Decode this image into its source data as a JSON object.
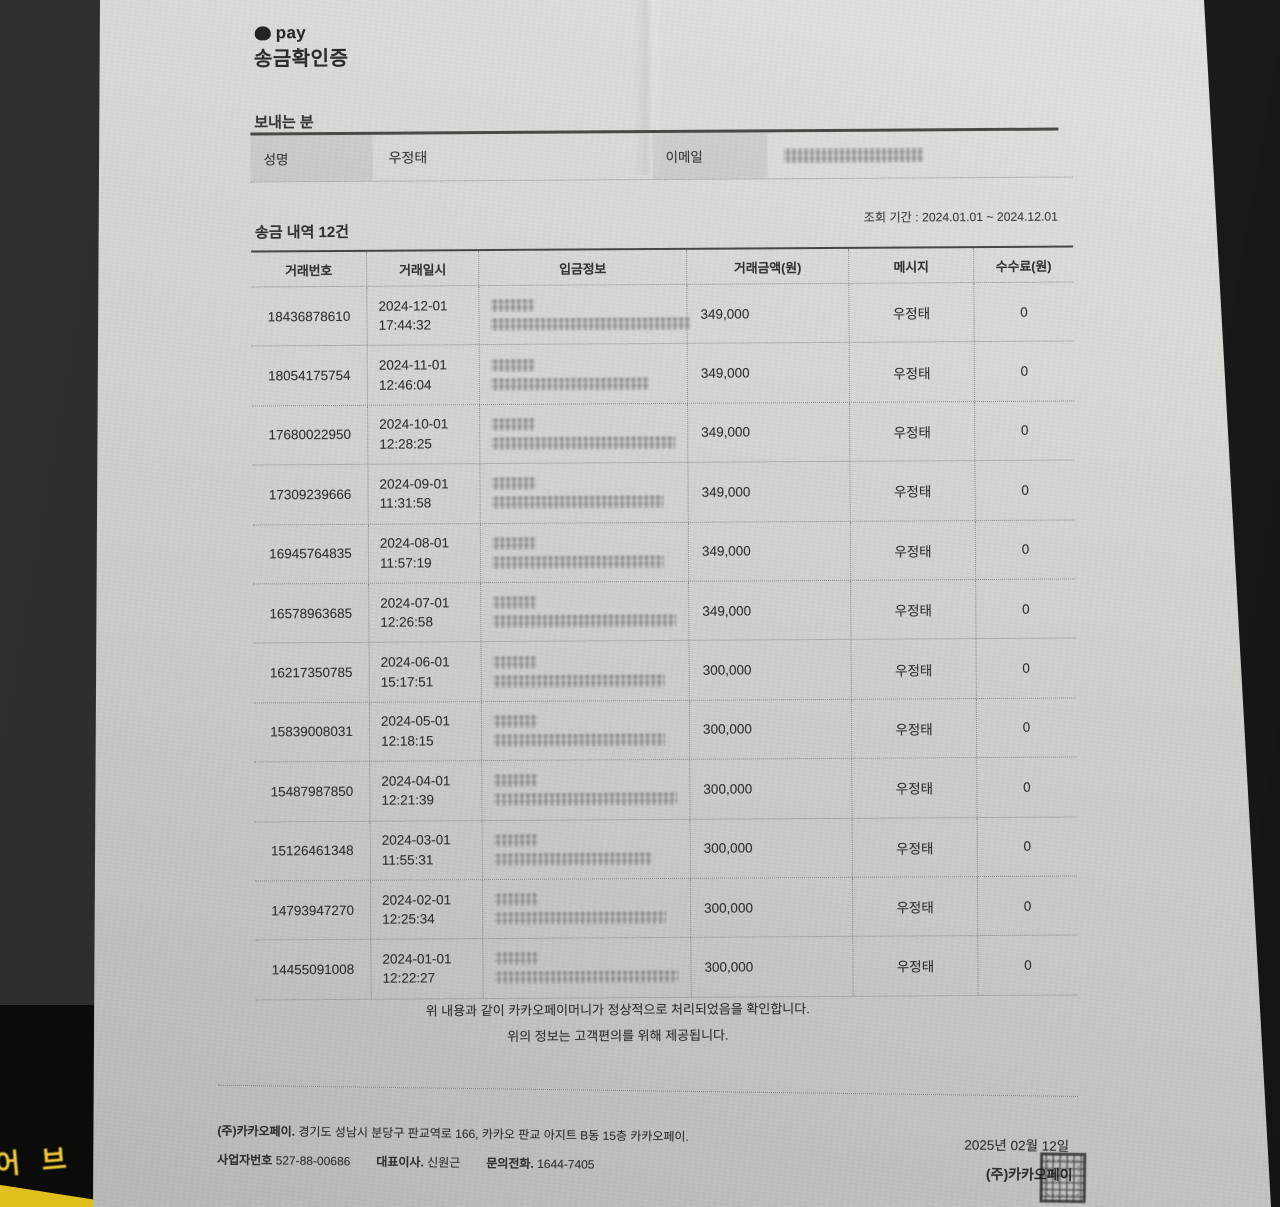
{
  "backdrop": {
    "partial_text": "어 브"
  },
  "logo": {
    "icon": "kakao-speech-bubble-icon",
    "text": "pay"
  },
  "document": {
    "title": "송금확인증",
    "sender": {
      "heading": "보내는 분",
      "name_label": "성명",
      "name": "우정태",
      "email_label": "이메일",
      "email_redacted": "pixelated-blur"
    },
    "history": {
      "heading": "송금 내역 12건",
      "period": "조회 기간 : 2024.01.01 ~ 2024.12.01",
      "columns": [
        "거래번호",
        "거래일시",
        "입금정보",
        "거래금액(원)",
        "메시지",
        "수수료(원)"
      ],
      "deposit_info_redacted": "pixelated-blur",
      "rows": [
        {
          "txn_id": "18436878610",
          "date": "2024-12-01",
          "time": "17:44:32",
          "amount": "349,000",
          "message": "우정태",
          "fee": "0"
        },
        {
          "txn_id": "18054175754",
          "date": "2024-11-01",
          "time": "12:46:04",
          "amount": "349,000",
          "message": "우정태",
          "fee": "0"
        },
        {
          "txn_id": "17680022950",
          "date": "2024-10-01",
          "time": "12:28:25",
          "amount": "349,000",
          "message": "우정태",
          "fee": "0"
        },
        {
          "txn_id": "17309239666",
          "date": "2024-09-01",
          "time": "11:31:58",
          "amount": "349,000",
          "message": "우정태",
          "fee": "0"
        },
        {
          "txn_id": "16945764835",
          "date": "2024-08-01",
          "time": "11:57:19",
          "amount": "349,000",
          "message": "우정태",
          "fee": "0"
        },
        {
          "txn_id": "16578963685",
          "date": "2024-07-01",
          "time": "12:26:58",
          "amount": "349,000",
          "message": "우정태",
          "fee": "0"
        },
        {
          "txn_id": "16217350785",
          "date": "2024-06-01",
          "time": "15:17:51",
          "amount": "300,000",
          "message": "우정태",
          "fee": "0"
        },
        {
          "txn_id": "15839008031",
          "date": "2024-05-01",
          "time": "12:18:15",
          "amount": "300,000",
          "message": "우정태",
          "fee": "0"
        },
        {
          "txn_id": "15487987850",
          "date": "2024-04-01",
          "time": "12:21:39",
          "amount": "300,000",
          "message": "우정태",
          "fee": "0"
        },
        {
          "txn_id": "15126461348",
          "date": "2024-03-01",
          "time": "11:55:31",
          "amount": "300,000",
          "message": "우정태",
          "fee": "0"
        },
        {
          "txn_id": "14793947270",
          "date": "2024-02-01",
          "time": "12:25:34",
          "amount": "300,000",
          "message": "우정태",
          "fee": "0"
        },
        {
          "txn_id": "14455091008",
          "date": "2024-01-01",
          "time": "12:22:27",
          "amount": "300,000",
          "message": "우정태",
          "fee": "0"
        }
      ]
    },
    "notes": [
      "위 내용과 같이 카카오페이머니가 정상적으로 처리되었음을 확인합니다.",
      "위의 정보는 고객편의를 위해 제공됩니다."
    ],
    "company": {
      "name": "(주)카카오페이.",
      "address": "경기도 성남시 분당구 판교역로 166, 카카오 판교 아지트 B동 15층 카카오페이.",
      "biz_label": "사업자번호",
      "biz_no": "527-88-00686",
      "ceo_label": "대표이사.",
      "ceo_name": "신원근",
      "tel_label": "문의전화.",
      "tel_no": "1644-7405"
    },
    "issue": {
      "date": "2025년 02월 12일",
      "issuer": "(주)카카오페이",
      "stamp": "corporate-seal"
    }
  },
  "colors": {
    "paper": "#d5d4d0",
    "ink": "#33302c",
    "backdrop_dark": "#1c1c1b",
    "backdrop_yellow": "#dfc01c"
  }
}
